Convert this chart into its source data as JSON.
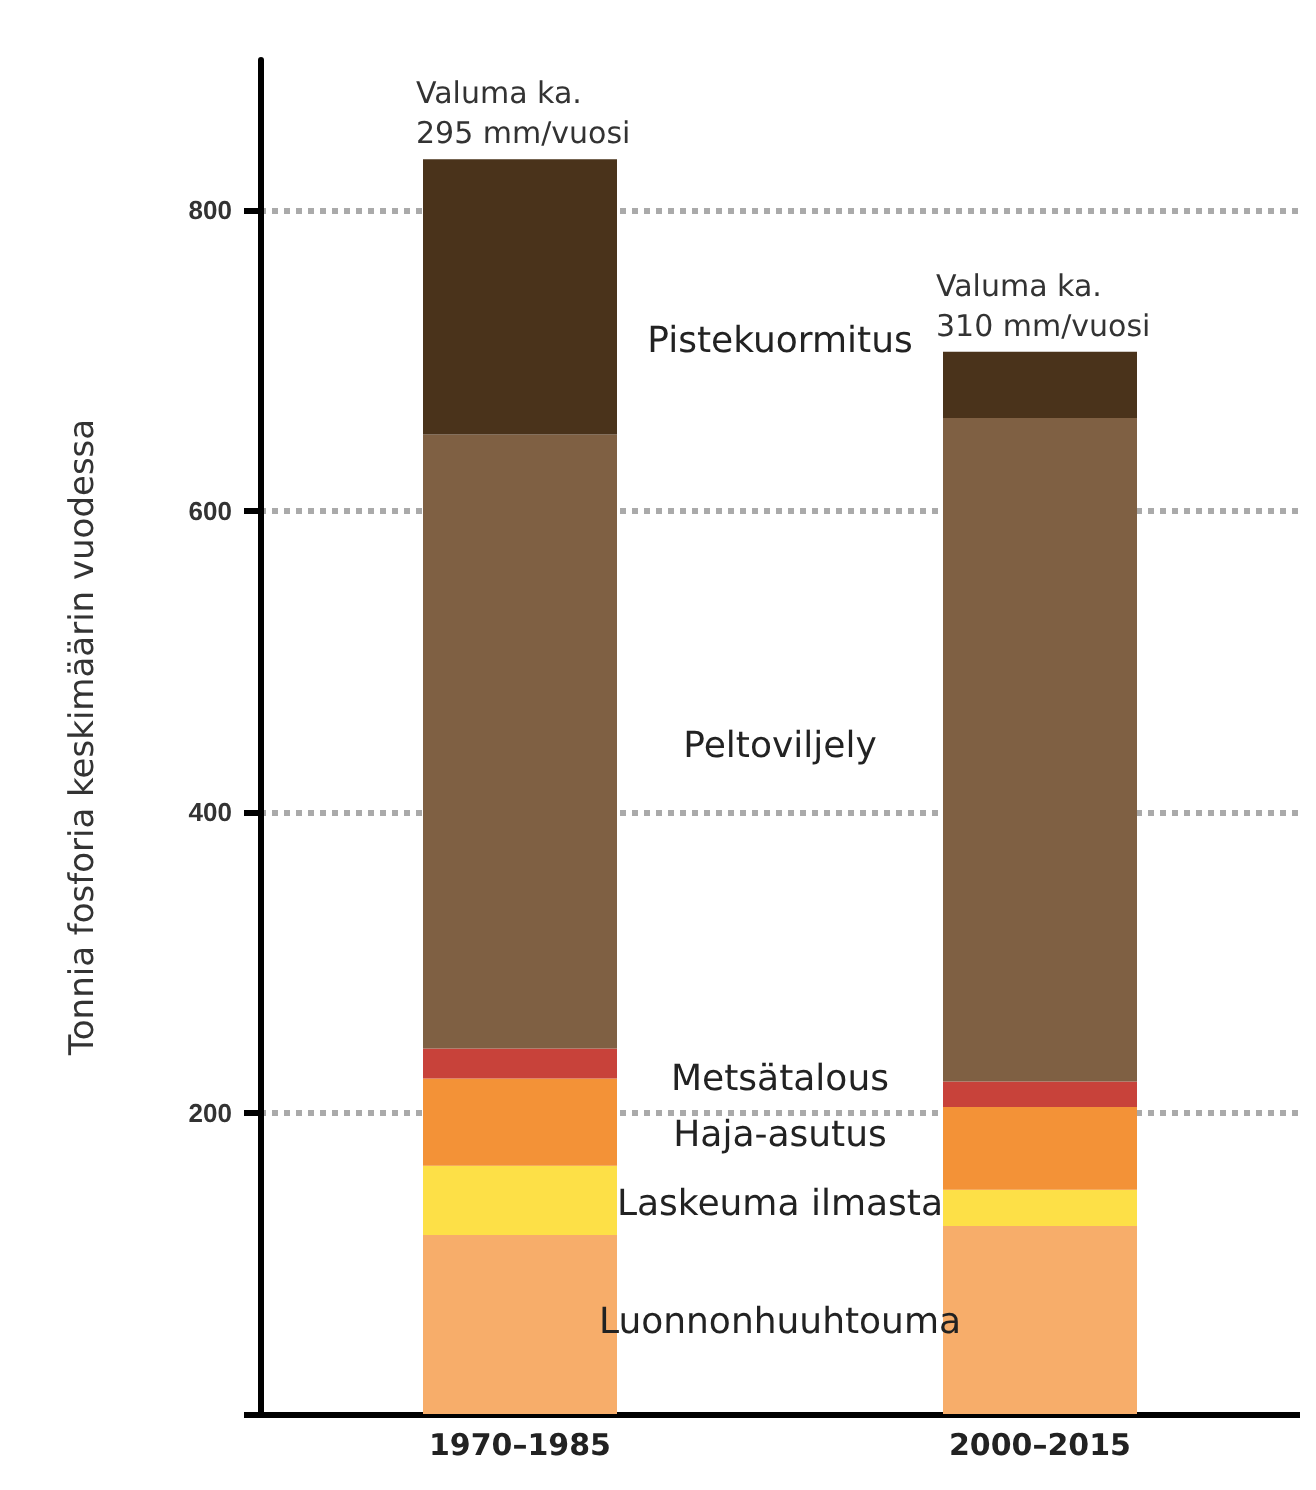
{
  "chart_data": {
    "type": "bar",
    "stacked": true,
    "ylabel": "Tonnia fosforia keskimäärin vuodessa",
    "categories": [
      "1970–1985",
      "2000–2015"
    ],
    "series": [
      {
        "name": "Luonnonhuuhtouma",
        "color": "#f7ad6a",
        "values": [
          119,
          125
        ]
      },
      {
        "name": "Laskeuma ilmasta",
        "color": "#fde047",
        "values": [
          46,
          24
        ]
      },
      {
        "name": "Haja-asutus",
        "color": "#f39237",
        "values": [
          58,
          55
        ]
      },
      {
        "name": "Metsätalous",
        "color": "#c8423a",
        "values": [
          20,
          17
        ]
      },
      {
        "name": "Peltoviljely",
        "color": "#7f6043",
        "values": [
          408,
          441
        ]
      },
      {
        "name": "Pistekuormitus",
        "color": "#4a331b",
        "values": [
          183,
          44
        ]
      }
    ],
    "ylim": [
      0,
      900
    ],
    "yticks": [
      {
        "value": 0,
        "label": null
      },
      200,
      400,
      600,
      800
    ],
    "grid": "y",
    "legend": false,
    "annotations": [
      {
        "text": "Valuma ka.\n295 mm/vuosi",
        "x": "1970–1985",
        "y": 834
      },
      {
        "text": "Valuma ka.\n310 mm/vuosi",
        "x": "2000–2015",
        "y": 706
      }
    ]
  }
}
